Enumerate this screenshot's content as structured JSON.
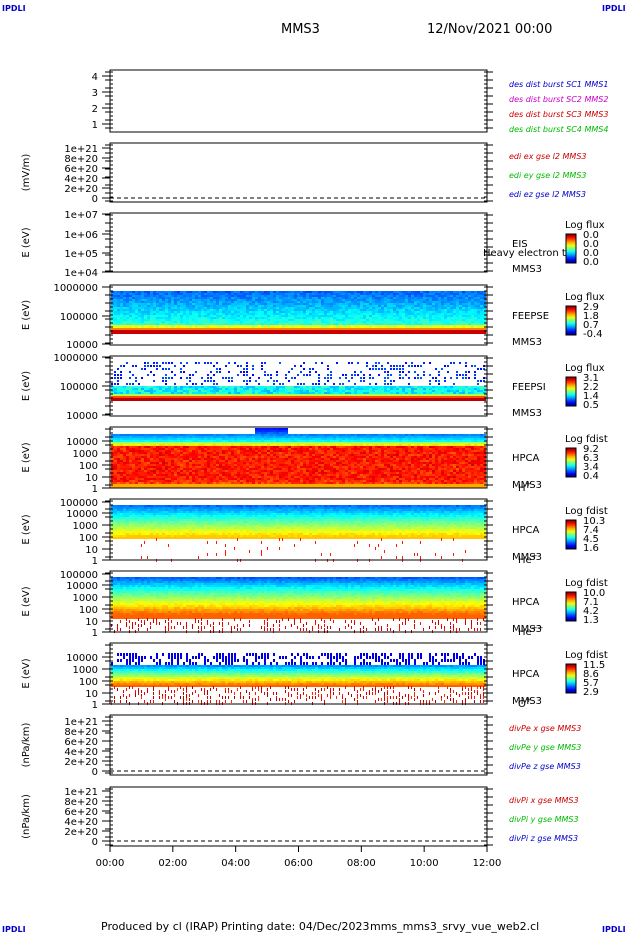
{
  "header": {
    "corner_tl": "IPDLI",
    "corner_tr": "IPDLI",
    "corner_bl": "IPDLI",
    "corner_br": "IPDLI",
    "mission": "MMS3",
    "datetime": "12/Nov/2021 00:00"
  },
  "footer": {
    "produced": "Produced by cl (IRAP)",
    "printing": "Printing date: 04/Dec/2023",
    "file": "mms_mms3_srvy_vue_web2.cl"
  },
  "colors": {
    "sc1": "#0000cc",
    "sc2": "#cc00cc",
    "sc3": "#cc0000",
    "sc4": "#00bb00",
    "x": "#cc0000",
    "y": "#00bb00",
    "z": "#0000cc",
    "frame": "#000000"
  },
  "chart_data": {
    "type": "heatmap",
    "x_tick_labels": [
      "00:00",
      "02:00",
      "04:00",
      "06:00",
      "08:00",
      "10:00",
      "12:00"
    ],
    "xlim": [
      "00:00",
      "12:00"
    ],
    "panels": [
      {
        "id": "burst",
        "ylabel": "",
        "tick_labels": [
          "4",
          "3",
          "2",
          "1"
        ],
        "ylim": [
          0.5,
          4.5
        ],
        "labels": [
          {
            "text": "des dist burst SC1 MMS1",
            "color": "#0000cc"
          },
          {
            "text": "des dist burst SC2 MMS2",
            "color": "#cc00cc"
          },
          {
            "text": "des dist burst SC3 MMS3",
            "color": "#cc0000"
          },
          {
            "text": "des dist burst SC4 MMS4",
            "color": "#00bb00"
          }
        ]
      },
      {
        "id": "edi",
        "ylabel": "(mV/m)",
        "tick_labels": [
          "1e+21",
          "8e+20",
          "6e+20",
          "4e+20",
          "2e+20",
          "0"
        ],
        "ylim": [
          0,
          1e+21
        ],
        "labels": [
          {
            "text": "edi ex gse l2 MMS3",
            "color": "#cc0000"
          },
          {
            "text": "edi ey gse l2 MMS3",
            "color": "#00bb00"
          },
          {
            "text": "edi ez gse l2 MMS3",
            "color": "#0000cc"
          }
        ]
      },
      {
        "id": "eis",
        "ylabel": "E (eV)",
        "tick_labels": [
          "1e+07",
          "1e+06",
          "1e+05",
          "1e+04"
        ],
        "ylim": [
          10000.0,
          10000000.0
        ],
        "scale": "log",
        "instrument": [
          "EIS",
          "MMS3"
        ],
        "overlay": "Heavy electron tof",
        "colorbar": {
          "title": "Log flux",
          "ticks": [
            "0.0",
            "0.0",
            "0.0",
            "0.0"
          ]
        }
      },
      {
        "id": "feepse",
        "ylabel": "E (eV)",
        "tick_labels": [
          "1000000",
          "100000",
          "10000"
        ],
        "ylim": [
          10000.0,
          1000000.0
        ],
        "scale": "log",
        "instrument": [
          "FEEPSE",
          "MMS3"
        ],
        "colorbar": {
          "title": "Log flux",
          "ticks": [
            "2.9",
            "1.8",
            "0.7",
            "-0.4"
          ]
        }
      },
      {
        "id": "feepsi",
        "ylabel": "E (eV)",
        "tick_labels": [
          "1000000",
          "100000",
          "10000"
        ],
        "ylim": [
          10000.0,
          1000000.0
        ],
        "scale": "log",
        "instrument": [
          "FEEPSI",
          "MMS3"
        ],
        "colorbar": {
          "title": "Log flux",
          "ticks": [
            "3.1",
            "2.2",
            "1.4",
            "0.5"
          ]
        }
      },
      {
        "id": "hpca_h",
        "ylabel": "E (eV)",
        "tick_labels": [
          "10000",
          "1000",
          "100",
          "10",
          "1"
        ],
        "ylim": [
          1,
          40000
        ],
        "scale": "log",
        "instrument": [
          "HPCA",
          "MMS3"
        ],
        "species": {
          "base": "H",
          "sup": "+"
        },
        "colorbar": {
          "title": "Log fdist",
          "ticks": [
            "9.2",
            "6.3",
            "3.4",
            "0.4"
          ]
        }
      },
      {
        "id": "hpca_he",
        "ylabel": "E (eV)",
        "tick_labels": [
          "100000",
          "10000",
          "1000",
          "100",
          "10",
          "1"
        ],
        "ylim": [
          1,
          100000
        ],
        "scale": "log",
        "instrument": [
          "HPCA",
          "MMS3"
        ],
        "species": {
          "base": "He",
          "sup": "+"
        },
        "colorbar": {
          "title": "Log fdist",
          "ticks": [
            "10.3",
            "7.4",
            "4.5",
            "1.6"
          ]
        }
      },
      {
        "id": "hpca_hepp",
        "ylabel": "E (eV)",
        "tick_labels": [
          "100000",
          "10000",
          "1000",
          "100",
          "10",
          "1"
        ],
        "ylim": [
          1,
          100000
        ],
        "scale": "log",
        "instrument": [
          "HPCA",
          "MMS3"
        ],
        "species": {
          "base": "He",
          "sup": "++"
        },
        "colorbar": {
          "title": "Log fdist",
          "ticks": [
            "10.0",
            "7.1",
            "4.2",
            "1.3"
          ]
        }
      },
      {
        "id": "hpca_o",
        "ylabel": "E (eV)",
        "tick_labels": [
          "10000",
          "1000",
          "100",
          "10",
          "1"
        ],
        "ylim": [
          1,
          40000
        ],
        "scale": "log",
        "instrument": [
          "HPCA",
          "MMS3"
        ],
        "species": {
          "base": "O",
          "sup": "+"
        },
        "colorbar": {
          "title": "Log fdist",
          "ticks": [
            "11.5",
            "8.6",
            "5.7",
            "2.9"
          ]
        }
      },
      {
        "id": "divpe",
        "ylabel": "(nPa/km)",
        "tick_labels": [
          "1e+21",
          "8e+20",
          "6e+20",
          "4e+20",
          "2e+20",
          "0"
        ],
        "ylim": [
          0,
          1e+21
        ],
        "labels": [
          {
            "text": "divPe x gse MMS3",
            "color": "#cc0000"
          },
          {
            "text": "divPe y gse MMS3",
            "color": "#00bb00"
          },
          {
            "text": "divPe z gse MMS3",
            "color": "#0000cc"
          }
        ]
      },
      {
        "id": "divpi",
        "ylabel": "(nPa/km)",
        "tick_labels": [
          "1e+21",
          "8e+20",
          "6e+20",
          "4e+20",
          "2e+20",
          "0"
        ],
        "ylim": [
          0,
          1e+21
        ],
        "labels": [
          {
            "text": "divPi x gse MMS3",
            "color": "#cc0000"
          },
          {
            "text": "divPi y gse MMS3",
            "color": "#00bb00"
          },
          {
            "text": "divPi z gse MMS3",
            "color": "#0000cc"
          }
        ]
      }
    ]
  }
}
